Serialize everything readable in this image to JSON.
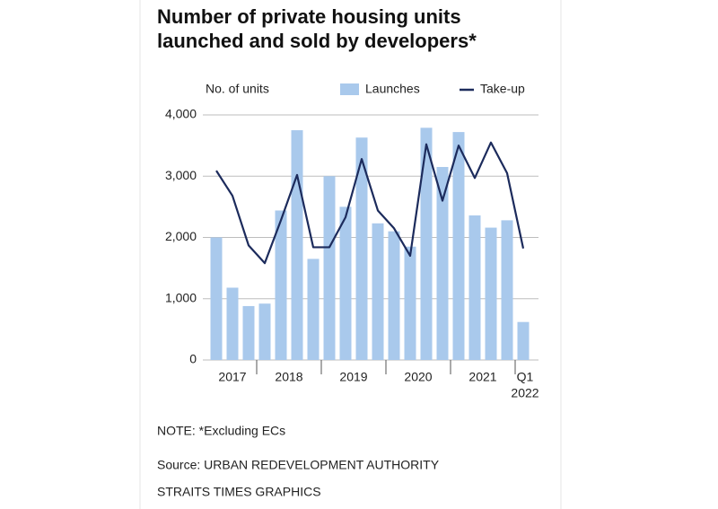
{
  "chart_data": {
    "type": "bar_line",
    "title": [
      "Number of private housing units",
      "launched and sold by developers*"
    ],
    "y_axis_label": "No. of units",
    "categories": [
      null,
      null,
      null,
      null,
      null,
      null,
      null,
      null,
      null,
      null,
      null,
      null,
      null,
      null,
      null,
      null,
      null,
      null,
      null,
      null
    ],
    "x_groups": [
      {
        "label": [
          "2017"
        ],
        "span": 3
      },
      {
        "label": [
          "2018"
        ],
        "span": 4
      },
      {
        "label": [
          "2019"
        ],
        "span": 4
      },
      {
        "label": [
          "2020"
        ],
        "span": 4
      },
      {
        "label": [
          "2021"
        ],
        "span": 4
      },
      {
        "label": [
          "Q1",
          "2022"
        ],
        "span": 1
      }
    ],
    "series": [
      {
        "name": "Launches",
        "kind": "bar",
        "color": "#a9c9ec",
        "values": [
          2000,
          1180,
          880,
          920,
          2440,
          3750,
          1650,
          3000,
          2500,
          3630,
          2230,
          2100,
          1850,
          3790,
          3150,
          3720,
          2360,
          2160,
          2280,
          620
        ]
      },
      {
        "name": "Take-up",
        "kind": "line",
        "color": "#1c2b5c",
        "values": [
          3090,
          2680,
          1870,
          1580,
          2280,
          3020,
          1840,
          1840,
          2330,
          3280,
          2440,
          2150,
          1700,
          3520,
          2600,
          3500,
          2970,
          3550,
          3050,
          1820
        ]
      }
    ],
    "ylim": [
      0,
      4000
    ],
    "yticks": [
      0,
      {
        "value": 1000,
        "label": "1,000"
      },
      {
        "value": 2000,
        "label": "2,000"
      },
      {
        "value": 3000,
        "label": "3,000"
      },
      {
        "value": 4000,
        "label": "4,000"
      }
    ],
    "grid": true,
    "notes": [
      "NOTE: *Excluding ECs",
      "Source: URBAN REDEVELOPMENT AUTHORITY",
      "STRAITS TIMES GRAPHICS"
    ]
  }
}
